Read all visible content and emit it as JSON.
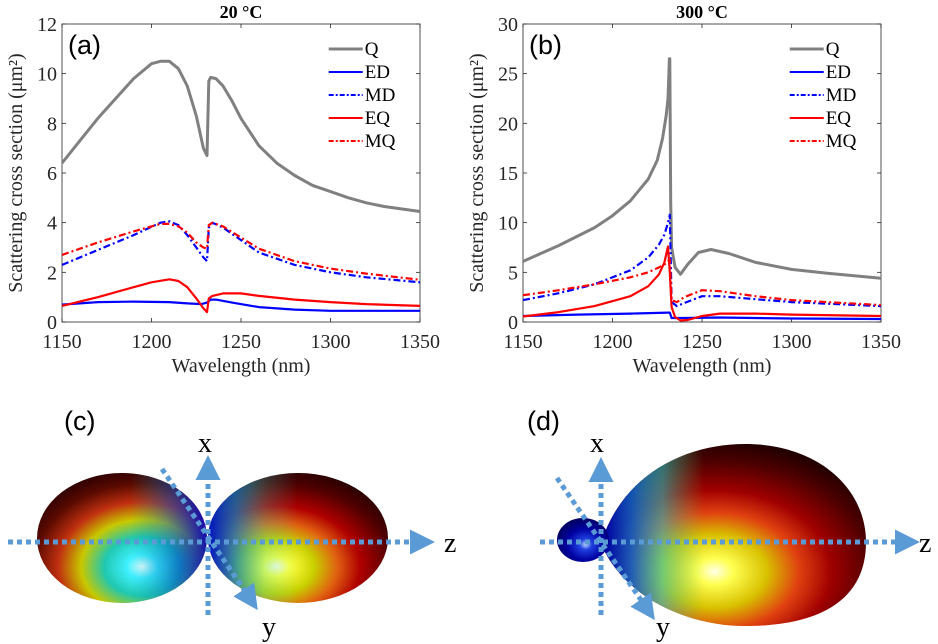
{
  "chart_data": [
    {
      "type": "line",
      "panel_label": "(a)",
      "title": "20 °C",
      "xlabel": "Wavelength (nm)",
      "ylabel": "Scattering cross section (μm²)",
      "xlim": [
        1150,
        1350
      ],
      "ylim": [
        0,
        12
      ],
      "xticks": [
        1150,
        1200,
        1250,
        1300,
        1350
      ],
      "yticks": [
        0,
        2,
        4,
        6,
        8,
        10,
        12
      ],
      "grid": false,
      "legend_position": "top-right",
      "series": [
        {
          "name": "Q",
          "color": "#808080",
          "style": "solid",
          "x": [
            1150,
            1160,
            1170,
            1180,
            1190,
            1200,
            1205,
            1210,
            1215,
            1220,
            1225,
            1229,
            1231,
            1232,
            1233,
            1236,
            1240,
            1245,
            1250,
            1260,
            1270,
            1280,
            1290,
            1300,
            1310,
            1320,
            1330,
            1340,
            1350
          ],
          "y": [
            6.4,
            7.3,
            8.2,
            9.0,
            9.8,
            10.4,
            10.5,
            10.5,
            10.2,
            9.5,
            8.3,
            7.0,
            6.7,
            9.7,
            9.85,
            9.8,
            9.5,
            8.9,
            8.2,
            7.1,
            6.4,
            5.9,
            5.5,
            5.25,
            5.0,
            4.8,
            4.65,
            4.55,
            4.45
          ]
        },
        {
          "name": "ED",
          "color": "#0000ff",
          "style": "solid",
          "x": [
            1150,
            1170,
            1190,
            1210,
            1220,
            1228,
            1231,
            1233,
            1236,
            1245,
            1260,
            1280,
            1300,
            1320,
            1350
          ],
          "y": [
            0.7,
            0.8,
            0.82,
            0.8,
            0.75,
            0.72,
            0.78,
            0.9,
            0.9,
            0.78,
            0.6,
            0.5,
            0.45,
            0.45,
            0.45
          ]
        },
        {
          "name": "MD",
          "color": "#0000ff",
          "style": "dashdot",
          "x": [
            1150,
            1170,
            1190,
            1205,
            1210,
            1215,
            1220,
            1225,
            1229,
            1231,
            1232,
            1234,
            1240,
            1250,
            1260,
            1280,
            1300,
            1320,
            1350
          ],
          "y": [
            2.3,
            2.9,
            3.5,
            4.0,
            4.05,
            3.9,
            3.5,
            3.0,
            2.6,
            2.45,
            3.8,
            4.0,
            3.8,
            3.3,
            2.8,
            2.3,
            2.0,
            1.8,
            1.6
          ]
        },
        {
          "name": "EQ",
          "color": "#ff0000",
          "style": "solid",
          "x": [
            1150,
            1170,
            1190,
            1200,
            1210,
            1215,
            1220,
            1225,
            1229,
            1231,
            1232,
            1234,
            1240,
            1250,
            1260,
            1280,
            1300,
            1320,
            1350
          ],
          "y": [
            0.65,
            1.0,
            1.4,
            1.6,
            1.72,
            1.65,
            1.4,
            0.95,
            0.55,
            0.4,
            0.95,
            1.05,
            1.15,
            1.15,
            1.05,
            0.9,
            0.8,
            0.72,
            0.65
          ]
        },
        {
          "name": "MQ",
          "color": "#ff0000",
          "style": "dashdot",
          "x": [
            1150,
            1170,
            1190,
            1205,
            1210,
            1215,
            1220,
            1225,
            1229,
            1231,
            1232,
            1234,
            1240,
            1250,
            1260,
            1280,
            1300,
            1320,
            1350
          ],
          "y": [
            2.7,
            3.2,
            3.65,
            3.95,
            3.95,
            3.85,
            3.6,
            3.2,
            3.0,
            2.95,
            3.9,
            4.0,
            3.85,
            3.4,
            2.95,
            2.45,
            2.15,
            1.95,
            1.7
          ]
        }
      ]
    },
    {
      "type": "line",
      "panel_label": "(b)",
      "title": "300 °C",
      "xlabel": "Wavelength (nm)",
      "ylabel": "Scattering cross section (μm²)",
      "xlim": [
        1150,
        1350
      ],
      "ylim": [
        0,
        30
      ],
      "xticks": [
        1150,
        1200,
        1250,
        1300,
        1350
      ],
      "yticks": [
        0,
        5,
        10,
        15,
        20,
        25,
        30
      ],
      "grid": false,
      "legend_position": "top-right",
      "series": [
        {
          "name": "Q",
          "color": "#808080",
          "style": "solid",
          "x": [
            1150,
            1170,
            1190,
            1200,
            1210,
            1220,
            1225,
            1228,
            1230,
            1231,
            1231.8,
            1232,
            1232.5,
            1233,
            1235,
            1238,
            1242,
            1248,
            1255,
            1265,
            1280,
            1300,
            1320,
            1350
          ],
          "y": [
            6.1,
            7.7,
            9.5,
            10.7,
            12.2,
            14.4,
            16.3,
            18.5,
            20.8,
            22.5,
            26.5,
            26.5,
            12.0,
            7.5,
            5.5,
            4.8,
            5.8,
            7.0,
            7.3,
            6.9,
            6.0,
            5.3,
            4.9,
            4.4
          ]
        },
        {
          "name": "ED",
          "color": "#0000ff",
          "style": "solid",
          "x": [
            1150,
            1180,
            1210,
            1231,
            1232,
            1233,
            1240,
            1260,
            1300,
            1350
          ],
          "y": [
            0.6,
            0.75,
            0.85,
            0.95,
            0.95,
            0.4,
            0.4,
            0.45,
            0.35,
            0.3
          ]
        },
        {
          "name": "MD",
          "color": "#0000ff",
          "style": "dashdot",
          "x": [
            1150,
            1170,
            1190,
            1210,
            1220,
            1226,
            1229,
            1231,
            1232,
            1233,
            1236,
            1240,
            1250,
            1260,
            1280,
            1300,
            1350
          ],
          "y": [
            2.2,
            2.9,
            3.8,
            5.2,
            6.5,
            7.8,
            8.8,
            10.0,
            10.8,
            2.0,
            1.6,
            1.9,
            2.6,
            2.6,
            2.3,
            2.0,
            1.6
          ]
        },
        {
          "name": "EQ",
          "color": "#ff0000",
          "style": "solid",
          "x": [
            1150,
            1170,
            1190,
            1210,
            1220,
            1226,
            1229,
            1231,
            1232,
            1233,
            1235,
            1238,
            1242,
            1250,
            1260,
            1280,
            1300,
            1350
          ],
          "y": [
            0.55,
            1.0,
            1.6,
            2.6,
            3.6,
            4.8,
            6.0,
            7.6,
            5.0,
            1.5,
            0.5,
            0.15,
            0.2,
            0.6,
            0.85,
            0.85,
            0.75,
            0.6
          ]
        },
        {
          "name": "MQ",
          "color": "#ff0000",
          "style": "dashdot",
          "x": [
            1150,
            1170,
            1190,
            1210,
            1220,
            1226,
            1229,
            1231,
            1232,
            1233,
            1236,
            1240,
            1250,
            1260,
            1280,
            1300,
            1350
          ],
          "y": [
            2.7,
            3.2,
            3.8,
            4.5,
            5.0,
            5.5,
            5.8,
            6.1,
            6.3,
            2.2,
            2.0,
            2.5,
            3.2,
            3.1,
            2.6,
            2.2,
            1.7
          ]
        }
      ]
    }
  ],
  "renderings": [
    {
      "panel_label": "(c)",
      "description": "Two symmetric lobes along z (forward/backward equal)",
      "axes": [
        "x",
        "y",
        "z"
      ]
    },
    {
      "panel_label": "(d)",
      "description": "Large forward lobe along +z with small backward lobe",
      "axes": [
        "x",
        "y",
        "z"
      ]
    }
  ]
}
